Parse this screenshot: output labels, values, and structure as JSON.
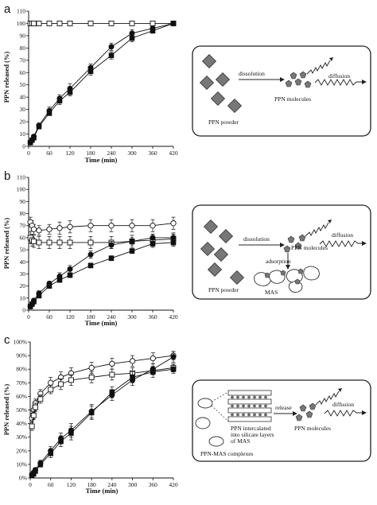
{
  "chart_data": [
    {
      "panel": "a",
      "type": "line",
      "xlabel": "Time (min)",
      "ylabel": "PPN released (%)",
      "x_ticks": [
        0,
        60,
        120,
        180,
        240,
        300,
        360,
        420
      ],
      "y_ticks": [
        0,
        10,
        20,
        30,
        40,
        50,
        60,
        70,
        80,
        90,
        100,
        110
      ],
      "xlim": [
        0,
        420
      ],
      "ylim": [
        0,
        110
      ],
      "grid": false,
      "series": [
        {
          "marker": "open-square",
          "points": [
            [
              5,
              100
            ],
            [
              10,
              100
            ],
            [
              15,
              100
            ],
            [
              30,
              100
            ],
            [
              60,
              100
            ],
            [
              90,
              100
            ],
            [
              120,
              100
            ],
            [
              180,
              100
            ],
            [
              240,
              100
            ],
            [
              300,
              100
            ],
            [
              360,
              100
            ],
            [
              420,
              100
            ]
          ],
          "err": [
            1,
            1,
            1,
            1,
            1,
            1,
            1,
            1,
            1,
            1,
            1,
            1
          ]
        },
        {
          "marker": "filled-circle",
          "points": [
            [
              5,
              3
            ],
            [
              10,
              5
            ],
            [
              15,
              8
            ],
            [
              30,
              17
            ],
            [
              60,
              29
            ],
            [
              90,
              39
            ],
            [
              120,
              47
            ],
            [
              180,
              64
            ],
            [
              240,
              81
            ],
            [
              300,
              92
            ],
            [
              360,
              96
            ],
            [
              420,
              100
            ]
          ],
          "err": [
            1,
            1,
            1,
            2,
            3,
            3,
            4,
            3,
            3,
            3,
            2,
            1
          ]
        },
        {
          "marker": "filled-square",
          "points": [
            [
              5,
              3
            ],
            [
              10,
              5
            ],
            [
              15,
              7
            ],
            [
              30,
              16
            ],
            [
              60,
              27
            ],
            [
              90,
              37
            ],
            [
              120,
              44
            ],
            [
              180,
              61
            ],
            [
              240,
              74
            ],
            [
              300,
              88
            ],
            [
              360,
              94
            ],
            [
              420,
              100
            ]
          ],
          "err": [
            1,
            1,
            1,
            1,
            2,
            3,
            3,
            3,
            3,
            3,
            2,
            1
          ]
        }
      ]
    },
    {
      "panel": "b",
      "type": "line",
      "xlabel": "Time (min)",
      "ylabel": "PPN released (%)",
      "x_ticks": [
        0,
        60,
        120,
        180,
        240,
        300,
        360,
        420
      ],
      "y_ticks": [
        0,
        10,
        20,
        30,
        40,
        50,
        60,
        70,
        80,
        90,
        100,
        110
      ],
      "xlim": [
        0,
        420
      ],
      "ylim": [
        0,
        110
      ],
      "grid": false,
      "series": [
        {
          "marker": "open-circle",
          "points": [
            [
              5,
              73
            ],
            [
              10,
              70
            ],
            [
              15,
              67
            ],
            [
              30,
              66
            ],
            [
              60,
              67
            ],
            [
              90,
              68
            ],
            [
              120,
              69
            ],
            [
              180,
              70
            ],
            [
              240,
              70
            ],
            [
              300,
              70
            ],
            [
              360,
              70
            ],
            [
              420,
              72
            ]
          ],
          "err": [
            4,
            4,
            4,
            4,
            4,
            5,
            5,
            5,
            5,
            5,
            5,
            5
          ]
        },
        {
          "marker": "open-square",
          "points": [
            [
              5,
              60
            ],
            [
              10,
              58
            ],
            [
              15,
              57
            ],
            [
              30,
              56
            ],
            [
              60,
              56
            ],
            [
              90,
              56
            ],
            [
              120,
              56
            ],
            [
              180,
              56
            ],
            [
              240,
              56
            ],
            [
              300,
              57
            ],
            [
              360,
              58
            ],
            [
              420,
              59
            ]
          ],
          "err": [
            5,
            5,
            5,
            5,
            5,
            5,
            5,
            5,
            5,
            5,
            5,
            5
          ]
        },
        {
          "marker": "filled-circle",
          "points": [
            [
              5,
              3
            ],
            [
              10,
              5
            ],
            [
              15,
              8
            ],
            [
              30,
              14
            ],
            [
              60,
              22
            ],
            [
              90,
              28
            ],
            [
              120,
              34
            ],
            [
              180,
              46
            ],
            [
              240,
              54
            ],
            [
              300,
              57
            ],
            [
              360,
              60
            ],
            [
              420,
              60
            ]
          ],
          "err": [
            1,
            1,
            1,
            2,
            2,
            3,
            3,
            3,
            3,
            3,
            3,
            3
          ]
        },
        {
          "marker": "filled-square",
          "points": [
            [
              5,
              3
            ],
            [
              10,
              5
            ],
            [
              15,
              7
            ],
            [
              30,
              12
            ],
            [
              60,
              20
            ],
            [
              90,
              25
            ],
            [
              120,
              29
            ],
            [
              180,
              37
            ],
            [
              240,
              43
            ],
            [
              300,
              49
            ],
            [
              360,
              55
            ],
            [
              420,
              56
            ]
          ],
          "err": [
            1,
            1,
            1,
            2,
            2,
            2,
            2,
            2,
            2,
            2,
            3,
            3
          ]
        }
      ]
    },
    {
      "panel": "c",
      "type": "line",
      "xlabel": "Time (min)",
      "ylabel": "PPN released (%)",
      "x_ticks": [
        0,
        60,
        120,
        180,
        240,
        300,
        360,
        420
      ],
      "y_ticks": [
        "0%",
        "10%",
        "20%",
        "30%",
        "40%",
        "50%",
        "60%",
        "70%",
        "80%",
        "90%",
        "100%"
      ],
      "xlim": [
        0,
        420
      ],
      "ylim": [
        0,
        100
      ],
      "grid": false,
      "series": [
        {
          "marker": "open-circle",
          "points": [
            [
              5,
              44
            ],
            [
              10,
              50
            ],
            [
              15,
              55
            ],
            [
              30,
              62
            ],
            [
              60,
              70
            ],
            [
              90,
              74
            ],
            [
              120,
              77
            ],
            [
              180,
              81
            ],
            [
              240,
              84
            ],
            [
              300,
              86
            ],
            [
              360,
              88
            ],
            [
              420,
              90
            ]
          ],
          "err": [
            3,
            3,
            3,
            3,
            4,
            4,
            4,
            4,
            4,
            4,
            4,
            3
          ]
        },
        {
          "marker": "open-square",
          "points": [
            [
              5,
              38
            ],
            [
              10,
              46
            ],
            [
              15,
              52
            ],
            [
              30,
              58
            ],
            [
              60,
              65
            ],
            [
              90,
              69
            ],
            [
              120,
              72
            ],
            [
              180,
              74
            ],
            [
              240,
              76
            ],
            [
              300,
              77
            ],
            [
              360,
              79
            ],
            [
              420,
              81
            ]
          ],
          "err": [
            3,
            3,
            3,
            3,
            3,
            4,
            4,
            4,
            4,
            4,
            3,
            3
          ]
        },
        {
          "marker": "filled-circle",
          "points": [
            [
              5,
              2
            ],
            [
              10,
              4
            ],
            [
              15,
              6
            ],
            [
              30,
              11
            ],
            [
              60,
              20
            ],
            [
              90,
              29
            ],
            [
              120,
              35
            ],
            [
              180,
              49
            ],
            [
              240,
              61
            ],
            [
              300,
              72
            ],
            [
              360,
              80
            ],
            [
              420,
              89
            ]
          ],
          "err": [
            1,
            1,
            1,
            2,
            3,
            4,
            5,
            5,
            4,
            4,
            4,
            4
          ]
        },
        {
          "marker": "filled-square",
          "points": [
            [
              5,
              2
            ],
            [
              10,
              3
            ],
            [
              15,
              5
            ],
            [
              30,
              10
            ],
            [
              60,
              18
            ],
            [
              90,
              27
            ],
            [
              120,
              33
            ],
            [
              180,
              48
            ],
            [
              240,
              63
            ],
            [
              300,
              74
            ],
            [
              360,
              78
            ],
            [
              420,
              80
            ]
          ],
          "err": [
            1,
            1,
            1,
            2,
            3,
            4,
            5,
            5,
            4,
            4,
            4,
            3
          ]
        }
      ]
    }
  ],
  "diagrams": {
    "a": {
      "panel": "a",
      "arrow1": "dissolution",
      "arrow2": "diffusion",
      "molecules": "PPN molecules",
      "source": "PPN powder"
    },
    "b": {
      "panel": "b",
      "arrow1": "dissolution",
      "arrow2": "diffusion",
      "molecules": "PPN molecules",
      "adsorption": "adsorption",
      "source": "PPN powder",
      "mas": "MAS"
    },
    "c": {
      "panel": "c",
      "arrow1": "release",
      "arrow2": "diffusion",
      "molecules": "PPN molecules",
      "intercalated": [
        "PPN intercalated",
        "into silicate layers",
        "of MAS"
      ],
      "source": "PPN-MAS complexes"
    }
  }
}
